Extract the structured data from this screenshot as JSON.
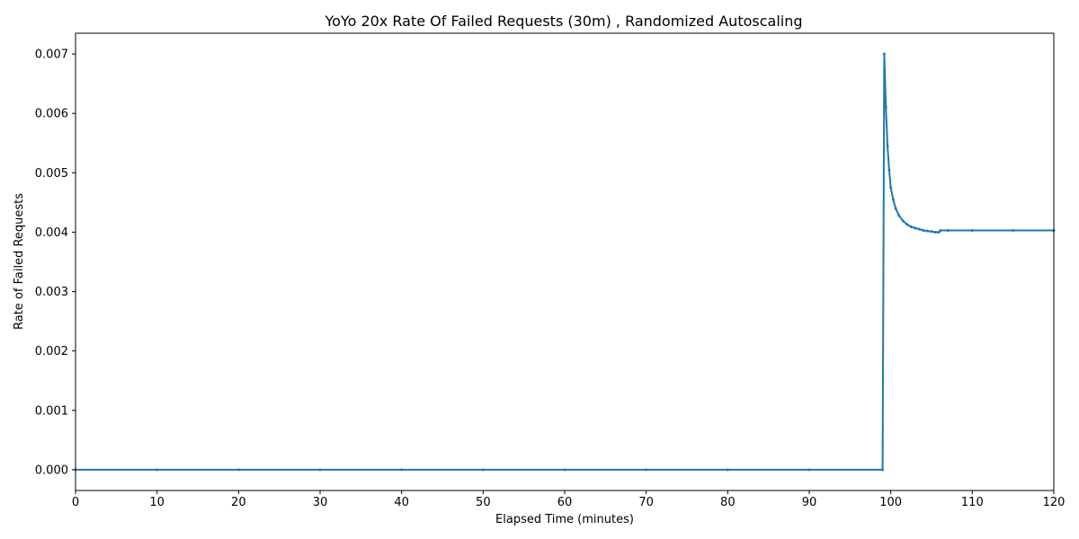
{
  "chart_data": {
    "type": "line",
    "title": "YoYo 20x Rate Of Failed Requests (30m) , Randomized Autoscaling",
    "xlabel": "Elapsed Time (minutes)",
    "ylabel": "Rate of Failed Requests",
    "xlim": [
      0,
      120
    ],
    "ylim": [
      -0.00035,
      0.00735
    ],
    "xticks": [
      0,
      10,
      20,
      30,
      40,
      50,
      60,
      70,
      80,
      90,
      100,
      110,
      120
    ],
    "yticks": [
      0.0,
      0.001,
      0.002,
      0.003,
      0.004,
      0.005,
      0.006,
      0.007
    ],
    "ytick_labels": [
      "0.000",
      "0.001",
      "0.002",
      "0.003",
      "0.004",
      "0.005",
      "0.006",
      "0.007"
    ],
    "grid": false,
    "series": [
      {
        "color": "#1f77b4",
        "x": [
          0,
          10,
          20,
          30,
          40,
          50,
          60,
          70,
          80,
          90,
          99.0,
          99.2,
          99.4,
          99.6,
          99.8,
          100.0,
          100.3,
          100.6,
          101.0,
          101.5,
          102.0,
          102.5,
          103.0,
          103.5,
          104.0,
          104.5,
          105.0,
          105.5,
          105.9,
          106.1,
          107,
          110,
          115,
          120
        ],
        "y": [
          0.0,
          0.0,
          0.0,
          0.0,
          0.0,
          0.0,
          0.0,
          0.0,
          0.0,
          0.0,
          0.0,
          0.007,
          0.0061,
          0.00545,
          0.00505,
          0.00475,
          0.00455,
          0.0044,
          0.00428,
          0.00419,
          0.00413,
          0.00409,
          0.00407,
          0.00405,
          0.00403,
          0.00402,
          0.00401,
          0.004,
          0.004,
          0.00403,
          0.00403,
          0.00403,
          0.00403,
          0.00403
        ]
      }
    ]
  }
}
